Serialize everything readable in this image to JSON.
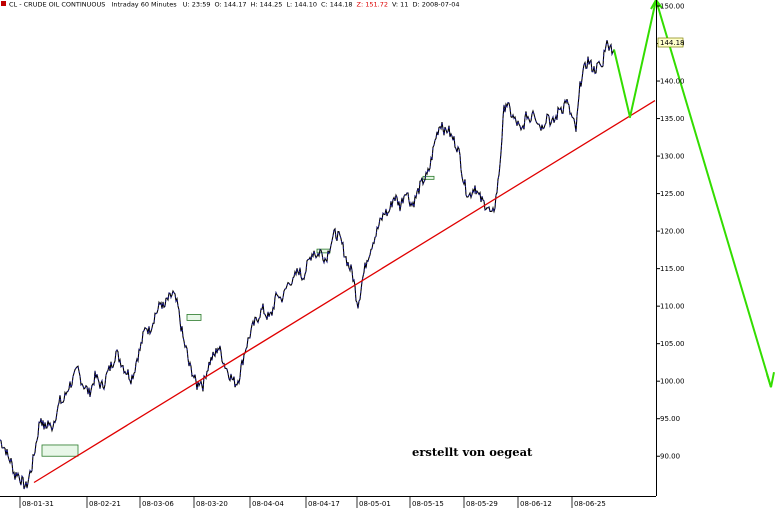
{
  "header": {
    "symbol": "CL - CRUDE OIL CONTINUOUS",
    "interval": "Intraday 60 Minutes",
    "fields": [
      {
        "label": "U:",
        "value": "23:59"
      },
      {
        "label": "O:",
        "value": "144.17"
      },
      {
        "label": "H:",
        "value": "144.25"
      },
      {
        "label": "L:",
        "value": "144.10"
      },
      {
        "label": "C:",
        "value": "144.18"
      },
      {
        "label": "Z:",
        "value": "151.72",
        "color": "#dd0000"
      },
      {
        "label": "V:",
        "value": "11"
      },
      {
        "label": "D:",
        "value": "2008-07-04"
      }
    ]
  },
  "annotation": "erstellt von oegeat",
  "last_price_label": "144.18",
  "colors": {
    "price": "#000000",
    "price_highlight": "#1a1aa8",
    "trendline": "#e00000",
    "projection": "#33dd00",
    "gap_box": "#e8f7e8"
  },
  "chart_data": {
    "type": "line",
    "title": "",
    "xlabel": "",
    "ylabel": "",
    "x_ticks": [
      "08-01-31",
      "08-02-21",
      "08-03-06",
      "08-03-20",
      "08-04-04",
      "08-04-17",
      "08-05-01",
      "08-05-15",
      "08-05-29",
      "08-06-12",
      "08-06-25"
    ],
    "y_ticks": [
      90,
      95,
      100,
      105,
      110,
      115,
      120,
      125,
      130,
      135,
      140,
      145,
      150
    ],
    "ylim": [
      84.7,
      150.8
    ],
    "grid": false,
    "series": [
      {
        "role": "price",
        "points": [
          [
            0,
            92.2
          ],
          [
            3,
            91.5
          ],
          [
            6,
            90.8
          ],
          [
            8,
            89.9
          ],
          [
            11,
            89.3
          ],
          [
            13,
            88.4
          ],
          [
            15,
            87.3
          ],
          [
            17,
            87.9
          ],
          [
            20,
            87.1
          ],
          [
            23,
            86.4
          ],
          [
            26,
            85.9
          ],
          [
            28,
            86.6
          ],
          [
            30,
            87.8
          ],
          [
            32,
            88.6
          ],
          [
            34,
            90.2
          ],
          [
            37,
            92.4
          ],
          [
            39,
            94.1
          ],
          [
            41,
            95.3
          ],
          [
            43,
            94.1
          ],
          [
            46,
            93.8
          ],
          [
            48,
            94.6
          ],
          [
            51,
            93.7
          ],
          [
            53,
            94.3
          ],
          [
            56,
            95.6
          ],
          [
            58,
            96.4
          ],
          [
            60,
            97.4
          ],
          [
            63,
            97.2
          ],
          [
            66,
            98.3
          ],
          [
            69,
            99.4
          ],
          [
            72,
            99.9
          ],
          [
            75,
            100.8
          ],
          [
            78,
            101.6
          ],
          [
            80,
            100.6
          ],
          [
            83,
            99.6
          ],
          [
            86,
            99.1
          ],
          [
            89,
            98.4
          ],
          [
            92,
            99.3
          ],
          [
            95,
            100.6
          ],
          [
            98,
            100.2
          ],
          [
            101,
            99.3
          ],
          [
            104,
            99.7
          ],
          [
            107,
            100.9
          ],
          [
            110,
            101.8
          ],
          [
            113,
            102.6
          ],
          [
            116,
            103.9
          ],
          [
            119,
            103.1
          ],
          [
            122,
            102.4
          ],
          [
            125,
            101.5
          ],
          [
            128,
            101.1
          ],
          [
            131,
            100.4
          ],
          [
            134,
            101.2
          ],
          [
            137,
            103.1
          ],
          [
            140,
            104.2
          ],
          [
            143,
            105.9
          ],
          [
            146,
            107.4
          ],
          [
            149,
            106.7
          ],
          [
            152,
            107.6
          ],
          [
            155,
            108.9
          ],
          [
            158,
            109.5
          ],
          [
            161,
            110.6
          ],
          [
            164,
            109.6
          ],
          [
            167,
            110.8
          ],
          [
            170,
            111.1
          ],
          [
            173,
            111.7
          ],
          [
            176,
            110.6
          ],
          [
            178,
            109.8
          ],
          [
            181,
            107.3
          ],
          [
            184,
            105.1
          ],
          [
            187,
            103.9
          ],
          [
            189,
            102.1
          ],
          [
            192,
            101.4
          ],
          [
            195,
            100.1
          ],
          [
            197,
            99.4
          ],
          [
            200,
            100.2
          ],
          [
            203,
            99.4
          ],
          [
            206,
            101.1
          ],
          [
            209,
            102.3
          ],
          [
            212,
            103.1
          ],
          [
            215,
            103.5
          ],
          [
            218,
            104.6
          ],
          [
            221,
            103.8
          ],
          [
            224,
            102.4
          ],
          [
            227,
            101.6
          ],
          [
            230,
            100.8
          ],
          [
            233,
            100.1
          ],
          [
            236,
            99.7
          ],
          [
            239,
            100.5
          ],
          [
            242,
            102.3
          ],
          [
            245,
            104.1
          ],
          [
            248,
            105.4
          ],
          [
            251,
            106.6
          ],
          [
            254,
            107.6
          ],
          [
            257,
            108.2
          ],
          [
            260,
            109.1
          ],
          [
            263,
            109.6
          ],
          [
            266,
            108.9
          ],
          [
            269,
            108.4
          ],
          [
            272,
            109.1
          ],
          [
            275,
            110.8
          ],
          [
            278,
            111.6
          ],
          [
            281,
            110.9
          ],
          [
            284,
            111.5
          ],
          [
            287,
            112.7
          ],
          [
            290,
            113.5
          ],
          [
            293,
            113.1
          ],
          [
            296,
            114.3
          ],
          [
            299,
            114.8
          ],
          [
            302,
            113.9
          ],
          [
            305,
            114.5
          ],
          [
            308,
            115.7
          ],
          [
            311,
            116.8
          ],
          [
            314,
            117.4
          ],
          [
            317,
            116.6
          ],
          [
            320,
            117.4
          ],
          [
            323,
            116.8
          ],
          [
            326,
            116.2
          ],
          [
            329,
            117.7
          ],
          [
            332,
            118.8
          ],
          [
            335,
            119.7
          ],
          [
            338,
            119.4
          ],
          [
            341,
            118.6
          ],
          [
            343,
            117.8
          ],
          [
            346,
            116.4
          ],
          [
            349,
            115.3
          ],
          [
            352,
            114.6
          ],
          [
            354,
            113.2
          ],
          [
            356,
            111.5
          ],
          [
            358,
            110.3
          ],
          [
            360,
            111.6
          ],
          [
            362,
            113.3
          ],
          [
            364,
            114.5
          ],
          [
            367,
            116.3
          ],
          [
            370,
            117.4
          ],
          [
            373,
            118.7
          ],
          [
            376,
            119.6
          ],
          [
            379,
            120.8
          ],
          [
            382,
            121.7
          ],
          [
            385,
            122.6
          ],
          [
            388,
            122.3
          ],
          [
            391,
            123.4
          ],
          [
            394,
            124.6
          ],
          [
            397,
            124.2
          ],
          [
            400,
            123.3
          ],
          [
            403,
            124.4
          ],
          [
            406,
            125.6
          ],
          [
            409,
            124.3
          ],
          [
            412,
            123.5
          ],
          [
            415,
            124.2
          ],
          [
            418,
            125.3
          ],
          [
            421,
            126.2
          ],
          [
            424,
            126.9
          ],
          [
            427,
            127.3
          ],
          [
            430,
            128.6
          ],
          [
            433,
            130.7
          ],
          [
            436,
            132.6
          ],
          [
            439,
            133.9
          ],
          [
            442,
            134.5
          ],
          [
            445,
            133.1
          ],
          [
            448,
            133.7
          ],
          [
            451,
            132.6
          ],
          [
            454,
            132.1
          ],
          [
            457,
            131.3
          ],
          [
            460,
            129.9
          ],
          [
            463,
            127.1
          ],
          [
            466,
            125.6
          ],
          [
            469,
            124.7
          ],
          [
            472,
            125.3
          ],
          [
            475,
            126.1
          ],
          [
            478,
            124.8
          ],
          [
            481,
            124.2
          ],
          [
            484,
            123.7
          ],
          [
            487,
            123.4
          ],
          [
            490,
            122.5
          ],
          [
            492,
            121.9
          ],
          [
            495,
            123.6
          ],
          [
            498,
            126.4
          ],
          [
            500,
            129.1
          ],
          [
            502,
            132.7
          ],
          [
            504,
            136.1
          ],
          [
            506,
            137.2
          ],
          [
            509,
            136.3
          ],
          [
            512,
            135.4
          ],
          [
            515,
            134.7
          ],
          [
            518,
            134.2
          ],
          [
            521,
            133.1
          ],
          [
            524,
            134.3
          ],
          [
            527,
            135.6
          ],
          [
            530,
            134.7
          ],
          [
            533,
            136.4
          ],
          [
            536,
            135.2
          ],
          [
            539,
            134.3
          ],
          [
            542,
            133.9
          ],
          [
            545,
            134.7
          ],
          [
            548,
            135.8
          ],
          [
            551,
            134.2
          ],
          [
            554,
            134.6
          ],
          [
            557,
            135.4
          ],
          [
            560,
            136.6
          ],
          [
            563,
            136.3
          ],
          [
            566,
            137.6
          ],
          [
            569,
            136.2
          ],
          [
            572,
            135.1
          ],
          [
            574,
            134.3
          ],
          [
            576,
            133.4
          ],
          [
            578,
            136.3
          ],
          [
            580,
            139.2
          ],
          [
            582,
            140.9
          ],
          [
            585,
            141.7
          ],
          [
            588,
            142.8
          ],
          [
            591,
            142.1
          ],
          [
            594,
            141.5
          ],
          [
            597,
            141.8
          ],
          [
            600,
            142.3
          ],
          [
            602,
            141.6
          ],
          [
            604,
            143.7
          ],
          [
            606,
            145.3
          ],
          [
            608,
            144.6
          ],
          [
            610,
            145.1
          ],
          [
            612,
            144.2
          ],
          [
            614,
            144.2
          ]
        ],
        "ohlc_note": "hourly bars"
      },
      {
        "role": "trendline",
        "points": [
          [
            34,
            86.5
          ],
          [
            655,
            137.4
          ]
        ]
      },
      {
        "role": "projection",
        "points": [
          [
            614,
            144.2
          ],
          [
            630,
            135.2
          ],
          [
            656,
            150.8
          ],
          [
            771,
            99.2
          ]
        ]
      }
    ],
    "arrowheads": [
      {
        "at": [
          656,
          150.8
        ],
        "direction": "up"
      },
      {
        "at": [
          771,
          99.2
        ],
        "direction": "down"
      }
    ],
    "gap_boxes": [
      {
        "x0": 42,
        "x1": 78,
        "y0": 90.0,
        "y1": 91.5
      },
      {
        "x0": 187,
        "x1": 201,
        "y0": 108.1,
        "y1": 108.9
      },
      {
        "x0": 317,
        "x1": 330,
        "y0": 117.1,
        "y1": 117.6
      },
      {
        "x0": 423,
        "x1": 434,
        "y0": 127.0,
        "y1": 127.3
      }
    ]
  }
}
